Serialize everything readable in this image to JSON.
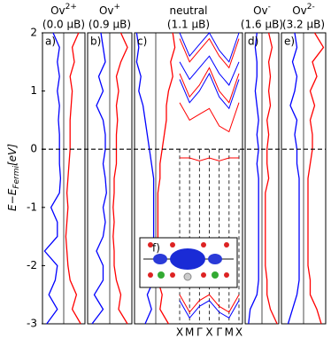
{
  "chart_data": {
    "type": "dos_panels",
    "y_label": "E−E",
    "y_label_sub": "Fermi",
    "y_label_unit": "[eV]",
    "ylim": [
      -3,
      2
    ],
    "yticks": [
      -3,
      -2,
      -1,
      0,
      1,
      2
    ],
    "fermi_level": 0,
    "xlim": [
      -1,
      1
    ],
    "energies": [
      2,
      1.75,
      1.5,
      1.25,
      1,
      0.75,
      0.5,
      0.25,
      0,
      -0.25,
      -0.5,
      -0.75,
      -1,
      -1.25,
      -1.5,
      -1.75,
      -2,
      -2.25,
      -2.5,
      -2.75,
      -3
    ],
    "panels": [
      {
        "tag": "a)",
        "label": "Ov",
        "charge": "2+",
        "moment": "(0.0 μB)",
        "series": [
          {
            "color": "#0000ff",
            "values": [
              -0.5,
              -0.2,
              -0.3,
              -0.2,
              -0.3,
              -0.2,
              -0.25,
              -0.2,
              -0.2,
              -0.2,
              -0.15,
              -0.2,
              -0.6,
              -0.3,
              -0.3,
              -0.9,
              -0.3,
              -0.4,
              -0.7,
              -0.3,
              -0.8
            ]
          },
          {
            "color": "#ff0000",
            "values": [
              0.7,
              0.4,
              0.5,
              0.3,
              0.4,
              0.35,
              0.3,
              0.3,
              0.3,
              0.25,
              0.2,
              0.15,
              0.2,
              0.15,
              0.1,
              0.15,
              0.2,
              0.3,
              0.6,
              0.4,
              0.8
            ]
          }
        ]
      },
      {
        "tag": "b)",
        "label": "Ov",
        "charge": "+",
        "moment": "(0.9 μB)",
        "series": [
          {
            "color": "#0000ff",
            "values": [
              -0.4,
              -0.3,
              -0.2,
              -0.5,
              -0.3,
              -0.6,
              -0.3,
              -0.2,
              -0.2,
              -0.3,
              -0.2,
              -0.15,
              -0.3,
              -0.2,
              -0.3,
              -0.6,
              -0.3,
              -0.3,
              -0.7,
              -0.3,
              -0.8
            ]
          },
          {
            "color": "#ff0000",
            "values": [
              0.5,
              0.8,
              0.5,
              0.3,
              0.4,
              0.3,
              0.35,
              0.3,
              0.3,
              0.3,
              0.2,
              0.2,
              0.15,
              0.2,
              0.15,
              0.2,
              0.2,
              0.3,
              0.5,
              0.4,
              0.8
            ]
          }
        ]
      },
      {
        "tag": "c)",
        "label": "neutral",
        "moment": "(1.1 μB)",
        "series": [
          {
            "color": "#0000ff",
            "values": [
              -0.9,
              -0.8,
              -0.9,
              -0.7,
              -0.8,
              -0.6,
              -0.5,
              -0.4,
              -0.3,
              -0.2,
              -0.1,
              -0.1,
              -0.1,
              -0.1,
              -0.1,
              -0.1,
              -0.1,
              -0.1,
              -0.4,
              -0.2,
              -0.5
            ]
          },
          {
            "color": "#ff0000",
            "values": [
              0.8,
              0.9,
              0.7,
              0.8,
              0.6,
              0.5,
              0.5,
              0.4,
              0.3,
              0.2,
              0.2,
              0.1,
              0.1,
              0.1,
              0.1,
              0.1,
              0.1,
              0.1,
              0.3,
              0.2,
              0.6
            ]
          }
        ]
      },
      {
        "tag": "d)",
        "label": "Ov",
        "charge": "-",
        "moment": "(1.6 μB)",
        "series": [
          {
            "color": "#0000ff",
            "values": [
              -0.3,
              -0.4,
              -0.3,
              -0.3,
              -0.4,
              -0.3,
              -0.2,
              -0.3,
              -0.2,
              -0.3,
              -0.2,
              -0.2,
              -0.2,
              -0.2,
              -0.2,
              -0.2,
              -0.2,
              -0.2,
              -0.3,
              -0.7,
              -0.8
            ]
          },
          {
            "color": "#ff0000",
            "values": [
              0.4,
              0.6,
              0.4,
              0.5,
              0.4,
              0.5,
              0.3,
              0.4,
              0.3,
              0.3,
              0.4,
              0.2,
              0.2,
              0.2,
              0.2,
              0.2,
              0.2,
              0.3,
              0.3,
              0.5,
              0.9
            ]
          }
        ]
      },
      {
        "tag": "e)",
        "label": "Ov",
        "charge": "2-",
        "moment": "(3.2 μB)",
        "series": [
          {
            "color": "#0000ff",
            "values": [
              -0.4,
              -0.3,
              -0.5,
              -0.3,
              -0.4,
              -0.6,
              -0.3,
              -0.4,
              -0.3,
              -0.3,
              -0.2,
              -0.2,
              -0.2,
              -0.2,
              -0.2,
              -0.2,
              -0.2,
              -0.2,
              -0.3,
              -0.5,
              -0.7
            ]
          },
          {
            "color": "#ff0000",
            "values": [
              0.5,
              0.9,
              0.4,
              0.6,
              0.3,
              0.5,
              0.3,
              0.4,
              0.4,
              0.3,
              0.2,
              0.2,
              0.2,
              0.2,
              0.2,
              0.2,
              0.2,
              0.3,
              0.3,
              0.6,
              0.8
            ]
          }
        ]
      }
    ],
    "bands": {
      "xlim": [
        0,
        6
      ],
      "xticks": [
        {
          "value": 0,
          "label": "X"
        },
        {
          "value": 1,
          "label": "M"
        },
        {
          "value": 2,
          "label": "Γ"
        },
        {
          "value": 3,
          "label": "X"
        },
        {
          "value": 4,
          "label": "Γ"
        },
        {
          "value": 5,
          "label": "M"
        },
        {
          "value": 6,
          "label": "X"
        }
      ],
      "series": [
        {
          "color": "#0000ff",
          "values": [
            2,
            1.6,
            1.8,
            2,
            1.7,
            1.5,
            2
          ]
        },
        {
          "color": "#0000ff",
          "values": [
            1.5,
            1.2,
            1.4,
            1.6,
            1.3,
            1.1,
            1.5
          ]
        },
        {
          "color": "#0000ff",
          "values": [
            1.2,
            0.8,
            1.0,
            1.3,
            0.9,
            0.7,
            1.2
          ]
        },
        {
          "color": "#0000ff",
          "values": [
            -2.6,
            -2.9,
            -2.7,
            -2.6,
            -2.8,
            -2.9,
            -2.6
          ]
        },
        {
          "color": "#ff0000",
          "values": [
            1.9,
            1.5,
            1.7,
            1.9,
            1.6,
            1.4,
            1.9
          ]
        },
        {
          "color": "#ff0000",
          "values": [
            1.3,
            0.9,
            1.1,
            1.4,
            1.0,
            0.8,
            1.3
          ]
        },
        {
          "color": "#ff0000",
          "values": [
            0.8,
            0.5,
            0.6,
            0.7,
            0.4,
            0.3,
            0.8
          ]
        },
        {
          "color": "#ff0000",
          "values": [
            -0.15,
            -0.15,
            -0.2,
            -0.15,
            -0.2,
            -0.15,
            -0.15
          ]
        },
        {
          "color": "#ff0000",
          "values": [
            -2.5,
            -2.8,
            -2.6,
            -2.5,
            -2.7,
            -2.8,
            -2.5
          ]
        }
      ]
    },
    "inset": {
      "tag": "f)"
    }
  }
}
